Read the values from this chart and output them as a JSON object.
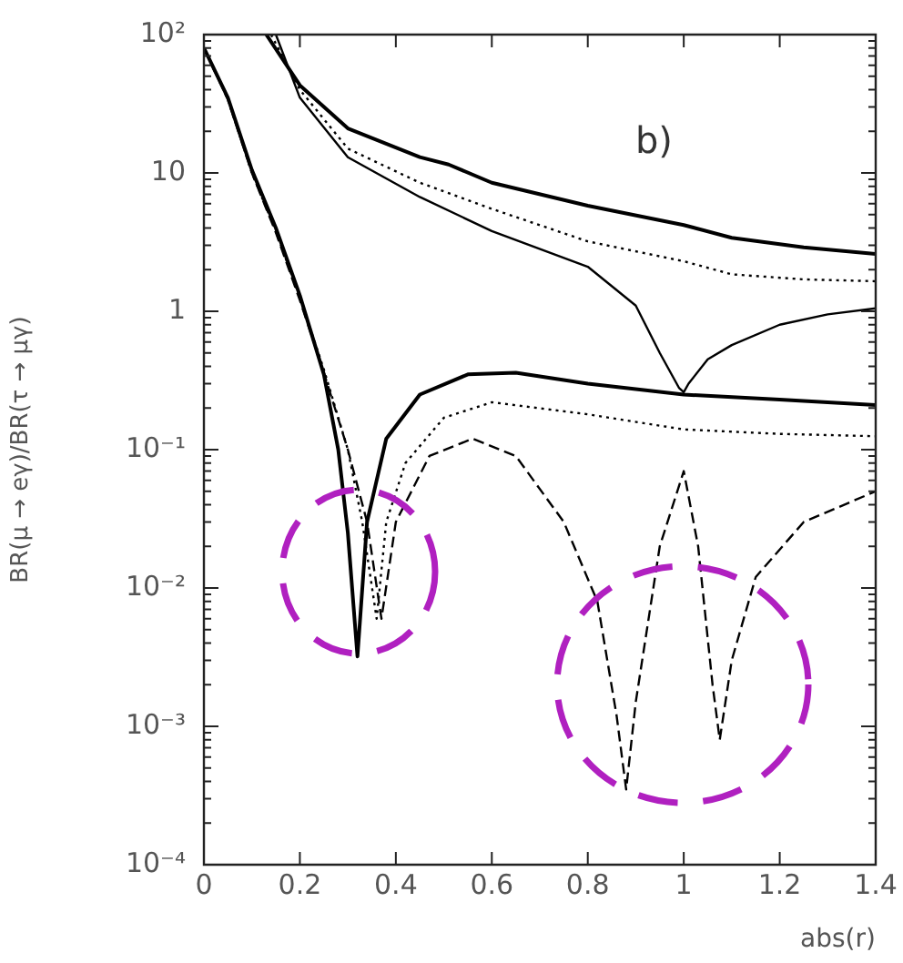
{
  "chart_data": {
    "type": "line",
    "xlabel": "abs(r)",
    "ylabel": "BR(μ → eγ)/BR(τ → μγ)",
    "annotations": [
      "b)"
    ],
    "log": "y",
    "grid": false,
    "legend": false,
    "marker": "none",
    "xlim": [
      0,
      1.4
    ],
    "xticks": [
      0,
      0.2,
      0.4,
      0.6,
      0.8,
      1,
      1.2,
      1.4
    ],
    "ylim": [
      0.0001,
      100
    ],
    "yticks": [
      {
        "value": 100,
        "label": "10²"
      },
      10,
      1,
      {
        "value": 0.1,
        "label": "10⁻¹"
      },
      {
        "value": 0.01,
        "label": "10⁻²"
      },
      {
        "value": 0.001,
        "label": "10⁻³"
      },
      {
        "value": 0.0001,
        "label": "10⁻⁴"
      }
    ],
    "series": [
      {
        "color": "#000000",
        "line_style": "solid",
        "x": [
          0.13,
          0.2,
          0.3,
          0.45,
          0.51,
          0.6,
          0.8,
          1.0,
          1.1,
          1.25,
          1.4
        ],
        "values": [
          100,
          43,
          21,
          13,
          11.5,
          8.5,
          5.8,
          4.2,
          3.4,
          2.9,
          2.6
        ]
      },
      {
        "color": "#000000",
        "line_style": "dotted",
        "x": [
          0.14,
          0.2,
          0.3,
          0.45,
          0.6,
          0.8,
          1.0,
          1.1,
          1.25,
          1.4
        ],
        "values": [
          100,
          40,
          15,
          8.5,
          5.5,
          3.2,
          2.3,
          1.85,
          1.7,
          1.65
        ]
      },
      {
        "color": "#000000",
        "line_style": "solid",
        "x": [
          0.15,
          0.2,
          0.3,
          0.45,
          0.6,
          0.8,
          0.9,
          0.95,
          0.99,
          1.0,
          1.01,
          1.05,
          1.1,
          1.2,
          1.3,
          1.4
        ],
        "values": [
          100,
          35,
          13,
          6.7,
          3.8,
          2.1,
          1.1,
          0.5,
          0.28,
          0.26,
          0.3,
          0.45,
          0.57,
          0.8,
          0.95,
          1.05
        ]
      },
      {
        "color": "#000000",
        "line_style": "solid",
        "x": [
          0,
          0.05,
          0.1,
          0.15,
          0.2,
          0.25,
          0.28,
          0.3,
          0.32,
          0.34,
          0.38,
          0.45,
          0.55,
          0.65,
          0.8,
          1.0,
          1.2,
          1.4
        ],
        "values": [
          80,
          35,
          10.5,
          4,
          1.3,
          0.35,
          0.1,
          0.025,
          0.0032,
          0.03,
          0.12,
          0.25,
          0.35,
          0.36,
          0.3,
          0.25,
          0.23,
          0.21
        ]
      },
      {
        "color": "#000000",
        "line_style": "dotted",
        "x": [
          0,
          0.05,
          0.1,
          0.15,
          0.2,
          0.25,
          0.3,
          0.33,
          0.36,
          0.38,
          0.42,
          0.5,
          0.6,
          0.8,
          1.0,
          1.2,
          1.4
        ],
        "values": [
          80,
          34,
          10,
          3.8,
          1.25,
          0.38,
          0.1,
          0.03,
          0.006,
          0.03,
          0.08,
          0.17,
          0.22,
          0.18,
          0.14,
          0.13,
          0.125
        ]
      },
      {
        "color": "#000000",
        "line_style": "dashed",
        "x": [
          0,
          0.05,
          0.1,
          0.15,
          0.2,
          0.25,
          0.3,
          0.34,
          0.37,
          0.4,
          0.47,
          0.56,
          0.65,
          0.75,
          0.82,
          0.86,
          0.88,
          0.9,
          0.95,
          1.0,
          1.03,
          1.06,
          1.075,
          1.1,
          1.15,
          1.25,
          1.4
        ],
        "values": [
          80,
          34,
          10,
          3.7,
          1.2,
          0.36,
          0.1,
          0.03,
          0.006,
          0.03,
          0.09,
          0.12,
          0.09,
          0.03,
          0.008,
          0.0012,
          0.00035,
          0.0015,
          0.02,
          0.07,
          0.02,
          0.002,
          0.0008,
          0.003,
          0.012,
          0.03,
          0.05
        ]
      }
    ]
  }
}
